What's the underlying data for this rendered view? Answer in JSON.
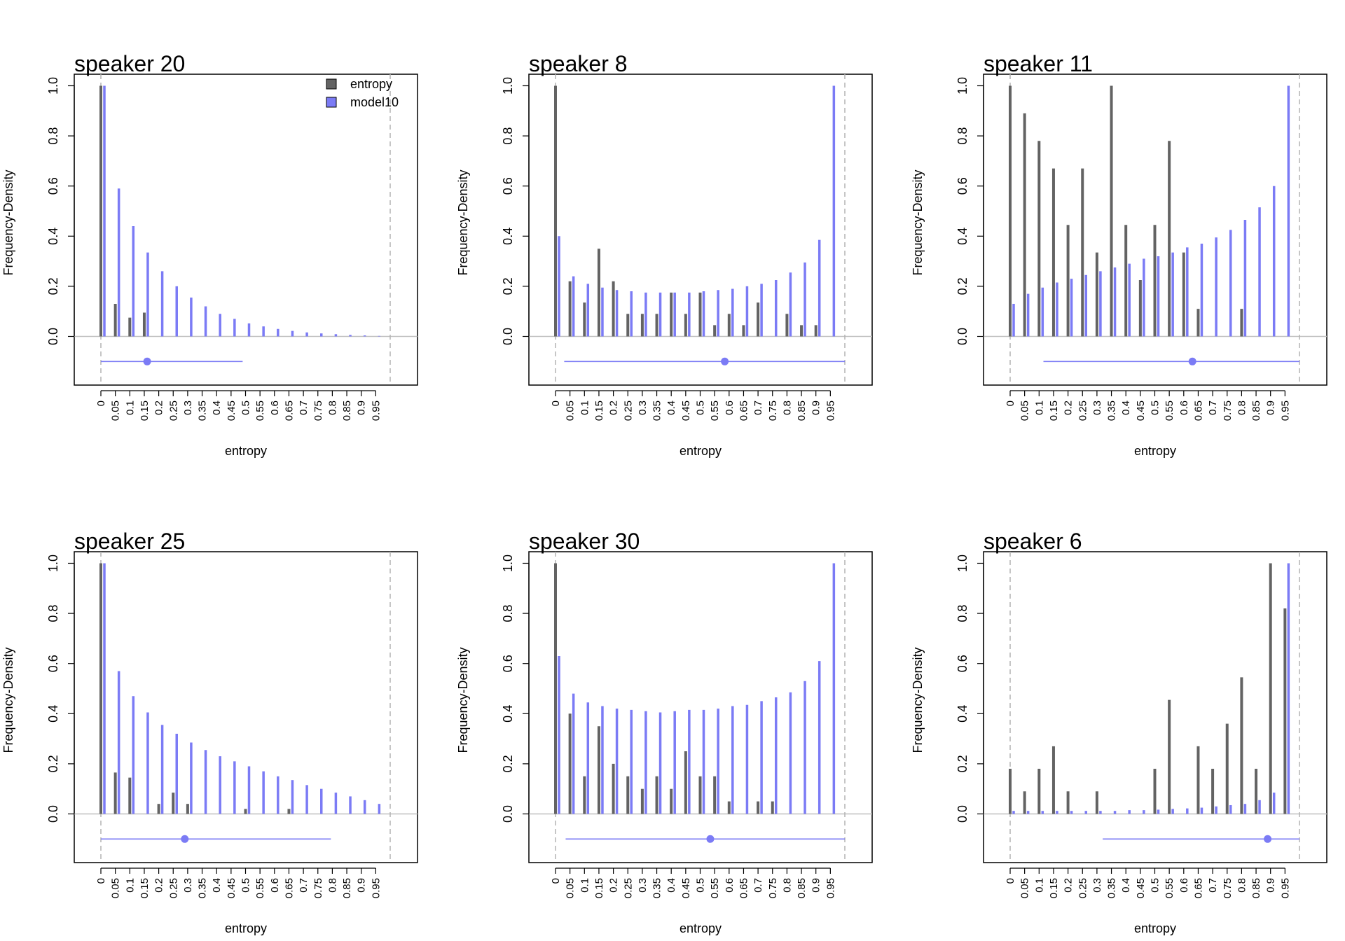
{
  "legend": {
    "entries": [
      {
        "label": "entropy",
        "color": "#636363"
      },
      {
        "label": "model10",
        "color": "#7b7bf5"
      }
    ],
    "position": "top-right of first panel"
  },
  "colors": {
    "observed": "#636363",
    "model": "#7b7bf5",
    "zero_line": "#bfbfbf",
    "bounds": "#b3b3b3"
  },
  "chart_data": [
    {
      "type": "bar",
      "title": "speaker 20",
      "xlabel": "entropy",
      "ylabel": "Frequency-Density",
      "ylim": [
        -0.2,
        1.0
      ],
      "yticks": [
        "0.0",
        "0.2",
        "0.4",
        "0.6",
        "0.8",
        "1.0"
      ],
      "categories": [
        "0",
        "0.05",
        "0.1",
        "0.15",
        "0.2",
        "0.25",
        "0.3",
        "0.35",
        "0.4",
        "0.45",
        "0.5",
        "0.55",
        "0.6",
        "0.65",
        "0.7",
        "0.75",
        "0.8",
        "0.85",
        "0.9",
        "0.95"
      ],
      "series": [
        {
          "name": "entropy",
          "values": [
            1.0,
            0.13,
            0.075,
            0.095,
            0,
            0,
            0,
            0,
            0,
            0,
            0,
            0,
            0,
            0,
            0,
            0,
            0,
            0,
            0,
            0
          ]
        },
        {
          "name": "model10",
          "values": [
            1.0,
            0.59,
            0.44,
            0.335,
            0.26,
            0.2,
            0.155,
            0.12,
            0.09,
            0.07,
            0.052,
            0.04,
            0.03,
            0.022,
            0.016,
            0.012,
            0.009,
            0.006,
            0.004,
            0.002
          ]
        }
      ],
      "bounds": [
        0,
        1
      ],
      "interval": {
        "low": 0,
        "high": 0.49,
        "point": 0.16
      },
      "show_legend": true
    },
    {
      "type": "bar",
      "title": "speaker 8",
      "xlabel": "entropy",
      "ylabel": "Frequency-Density",
      "ylim": [
        -0.2,
        1.0
      ],
      "yticks": [
        "0.0",
        "0.2",
        "0.4",
        "0.6",
        "0.8",
        "1.0"
      ],
      "categories": [
        "0",
        "0.05",
        "0.1",
        "0.15",
        "0.2",
        "0.25",
        "0.3",
        "0.35",
        "0.4",
        "0.45",
        "0.5",
        "0.55",
        "0.6",
        "0.65",
        "0.7",
        "0.75",
        "0.8",
        "0.85",
        "0.9",
        "0.95"
      ],
      "series": [
        {
          "name": "entropy",
          "values": [
            1.0,
            0.22,
            0.135,
            0.35,
            0.22,
            0.09,
            0.09,
            0.09,
            0.175,
            0.09,
            0.175,
            0.045,
            0.09,
            0.045,
            0.135,
            0,
            0.09,
            0.045,
            0.045,
            0
          ]
        },
        {
          "name": "model10",
          "values": [
            0.4,
            0.24,
            0.21,
            0.195,
            0.185,
            0.18,
            0.175,
            0.175,
            0.175,
            0.175,
            0.18,
            0.185,
            0.19,
            0.2,
            0.21,
            0.225,
            0.255,
            0.295,
            0.385,
            1.0
          ]
        }
      ],
      "bounds": [
        0,
        1
      ],
      "interval": {
        "low": 0.03,
        "high": 1.0,
        "point": 0.585
      },
      "show_legend": false
    },
    {
      "type": "bar",
      "title": "speaker 11",
      "xlabel": "entropy",
      "ylabel": "Frequency-Density",
      "ylim": [
        -0.2,
        1.0
      ],
      "yticks": [
        "0.0",
        "0.2",
        "0.4",
        "0.6",
        "0.8",
        "1.0"
      ],
      "categories": [
        "0",
        "0.05",
        "0.1",
        "0.15",
        "0.2",
        "0.25",
        "0.3",
        "0.35",
        "0.4",
        "0.45",
        "0.5",
        "0.55",
        "0.6",
        "0.65",
        "0.7",
        "0.75",
        "0.8",
        "0.85",
        "0.9",
        "0.95"
      ],
      "series": [
        {
          "name": "entropy",
          "values": [
            1.0,
            0.89,
            0.78,
            0.67,
            0.445,
            0.67,
            0.335,
            1.0,
            0.445,
            0.225,
            0.445,
            0.78,
            0.335,
            0.11,
            0,
            0,
            0.11,
            0,
            0,
            0
          ]
        },
        {
          "name": "model10",
          "values": [
            0.13,
            0.17,
            0.195,
            0.215,
            0.23,
            0.245,
            0.26,
            0.275,
            0.29,
            0.31,
            0.32,
            0.335,
            0.355,
            0.37,
            0.395,
            0.425,
            0.465,
            0.515,
            0.6,
            1.0
          ]
        }
      ],
      "bounds": [
        0,
        1
      ],
      "interval": {
        "low": 0.115,
        "high": 1.0,
        "point": 0.63
      },
      "show_legend": false
    },
    {
      "type": "bar",
      "title": "speaker 25",
      "xlabel": "entropy",
      "ylabel": "Frequency-Density",
      "ylim": [
        -0.2,
        1.0
      ],
      "yticks": [
        "0.0",
        "0.2",
        "0.4",
        "0.6",
        "0.8",
        "1.0"
      ],
      "categories": [
        "0",
        "0.05",
        "0.1",
        "0.15",
        "0.2",
        "0.25",
        "0.3",
        "0.35",
        "0.4",
        "0.45",
        "0.5",
        "0.55",
        "0.6",
        "0.65",
        "0.7",
        "0.75",
        "0.8",
        "0.85",
        "0.9",
        "0.95"
      ],
      "series": [
        {
          "name": "entropy",
          "values": [
            1.0,
            0.165,
            0.145,
            0,
            0.04,
            0.085,
            0.04,
            0,
            0,
            0,
            0.02,
            0,
            0,
            0.02,
            0,
            0,
            0,
            0,
            0,
            0
          ]
        },
        {
          "name": "model10",
          "values": [
            1.0,
            0.57,
            0.47,
            0.405,
            0.355,
            0.32,
            0.285,
            0.255,
            0.23,
            0.21,
            0.19,
            0.17,
            0.15,
            0.135,
            0.115,
            0.1,
            0.085,
            0.07,
            0.055,
            0.04
          ]
        }
      ],
      "bounds": [
        0,
        1
      ],
      "interval": {
        "low": 0,
        "high": 0.795,
        "point": 0.29
      },
      "show_legend": false
    },
    {
      "type": "bar",
      "title": "speaker 30",
      "xlabel": "entropy",
      "ylabel": "Frequency-Density",
      "ylim": [
        -0.2,
        1.0
      ],
      "yticks": [
        "0.0",
        "0.2",
        "0.4",
        "0.6",
        "0.8",
        "1.0"
      ],
      "categories": [
        "0",
        "0.05",
        "0.1",
        "0.15",
        "0.2",
        "0.25",
        "0.3",
        "0.35",
        "0.4",
        "0.45",
        "0.5",
        "0.55",
        "0.6",
        "0.65",
        "0.7",
        "0.75",
        "0.8",
        "0.85",
        "0.9",
        "0.95"
      ],
      "series": [
        {
          "name": "entropy",
          "values": [
            1.0,
            0.4,
            0.15,
            0.35,
            0.2,
            0.15,
            0.1,
            0.15,
            0.1,
            0.25,
            0.15,
            0.15,
            0.05,
            0,
            0.05,
            0.05,
            0,
            0,
            0,
            0
          ]
        },
        {
          "name": "model10",
          "values": [
            0.63,
            0.48,
            0.445,
            0.43,
            0.42,
            0.415,
            0.41,
            0.405,
            0.41,
            0.415,
            0.415,
            0.42,
            0.43,
            0.435,
            0.45,
            0.465,
            0.485,
            0.53,
            0.61,
            1.0
          ]
        }
      ],
      "bounds": [
        0,
        1
      ],
      "interval": {
        "low": 0.035,
        "high": 1.0,
        "point": 0.535
      },
      "show_legend": false
    },
    {
      "type": "bar",
      "title": "speaker 6",
      "xlabel": "entropy",
      "ylabel": "Frequency-Density",
      "ylim": [
        -0.2,
        1.0
      ],
      "yticks": [
        "0.0",
        "0.2",
        "0.4",
        "0.6",
        "0.8",
        "1.0"
      ],
      "categories": [
        "0",
        "0.05",
        "0.1",
        "0.15",
        "0.2",
        "0.25",
        "0.3",
        "0.35",
        "0.4",
        "0.45",
        "0.5",
        "0.55",
        "0.6",
        "0.65",
        "0.7",
        "0.75",
        "0.8",
        "0.85",
        "0.9",
        "0.95"
      ],
      "series": [
        {
          "name": "entropy",
          "values": [
            0.18,
            0.09,
            0.18,
            0.27,
            0.09,
            0,
            0.09,
            0,
            0,
            0,
            0.18,
            0.455,
            0,
            0.27,
            0.18,
            0.36,
            0.545,
            0.18,
            1.0,
            0.82
          ]
        },
        {
          "name": "model10",
          "values": [
            0.012,
            0.012,
            0.012,
            0.012,
            0.012,
            0.012,
            0.012,
            0.012,
            0.015,
            0.015,
            0.017,
            0.02,
            0.022,
            0.025,
            0.03,
            0.035,
            0.04,
            0.055,
            0.085,
            1.0
          ]
        }
      ],
      "bounds": [
        0,
        1
      ],
      "interval": {
        "low": 0.32,
        "high": 1.0,
        "point": 0.89
      },
      "show_legend": false
    }
  ]
}
